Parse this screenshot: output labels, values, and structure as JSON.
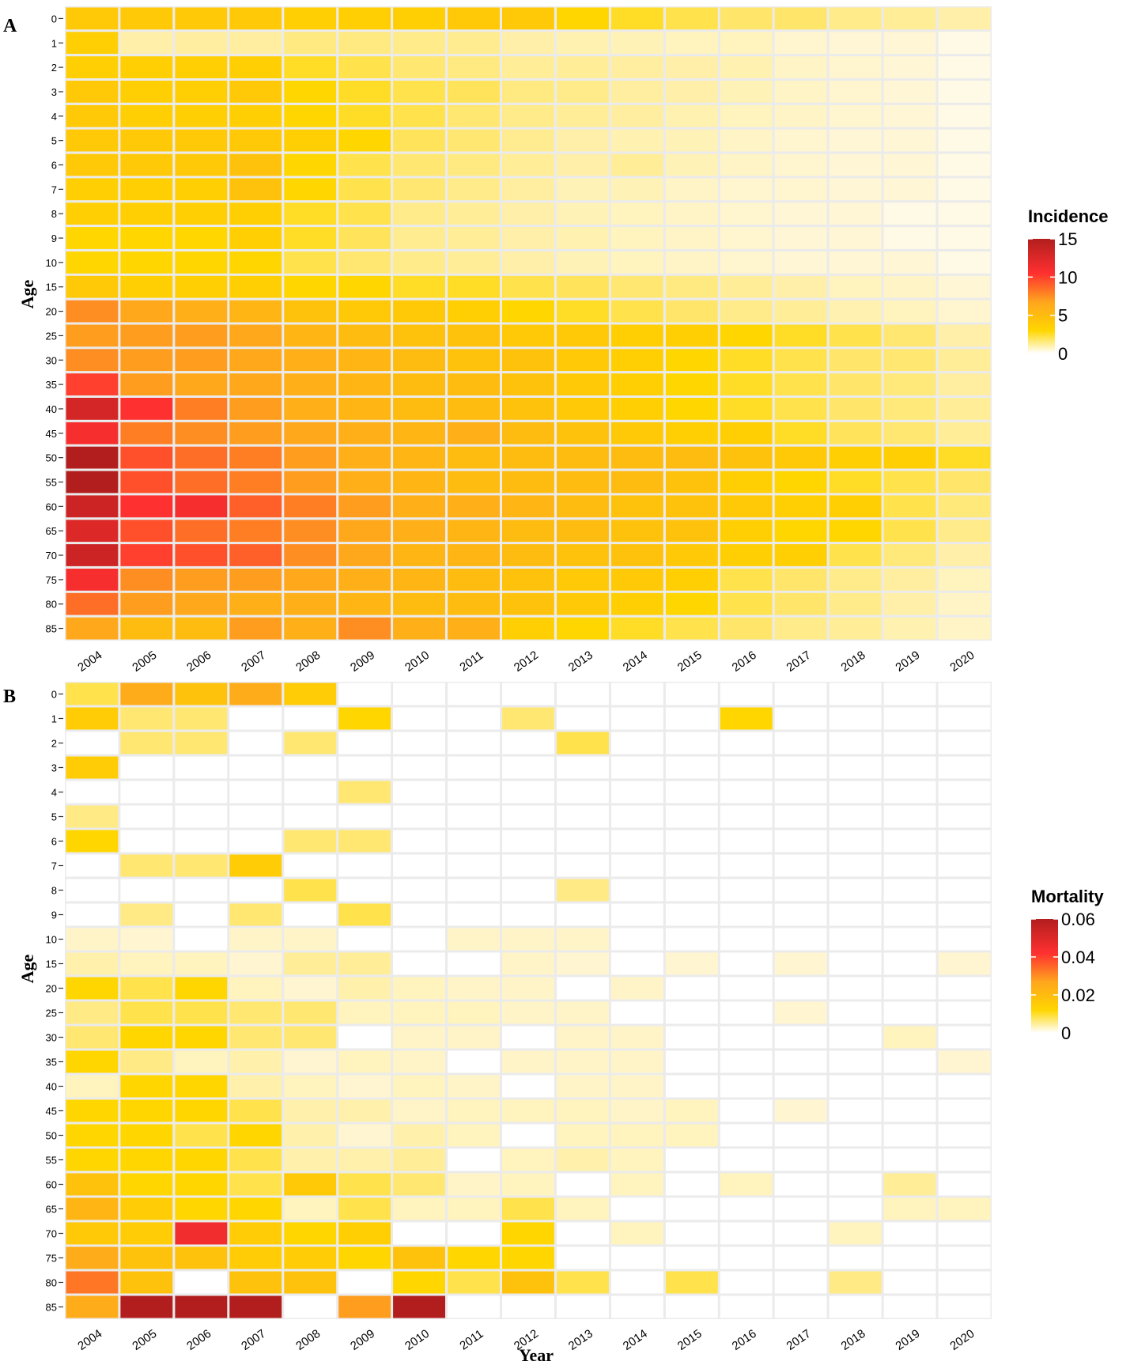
{
  "colors": {
    "scale": [
      "#FFFFFF",
      "#FFF7D9",
      "#FFD600",
      "#FFA51E",
      "#FF3030",
      "#B21E1E"
    ],
    "grid_bg": "#EBEBEB"
  },
  "chart_data": [
    {
      "panel": "A",
      "type": "heatmap",
      "xlabel": "",
      "ylabel": "Age",
      "legend_title": "Incidence",
      "legend_ticks": [
        "15",
        "10",
        "5",
        "0"
      ],
      "legend_range": [
        0,
        15
      ],
      "years": [
        "2004",
        "2005",
        "2006",
        "2007",
        "2008",
        "2009",
        "2010",
        "2011",
        "2012",
        "2013",
        "2014",
        "2015",
        "2016",
        "2017",
        "2018",
        "2019",
        "2020"
      ],
      "ages": [
        "0",
        "1",
        "2",
        "3",
        "4",
        "5",
        "6",
        "7",
        "8",
        "9",
        "10",
        "15",
        "20",
        "25",
        "30",
        "35",
        "40",
        "45",
        "50",
        "55",
        "60",
        "65",
        "70",
        "75",
        "80",
        "85"
      ],
      "values": [
        [
          4.0,
          4.0,
          4.0,
          4.0,
          3.5,
          3.5,
          3.5,
          4.0,
          4.0,
          3.0,
          2.5,
          2.0,
          1.6,
          1.6,
          1.2,
          1.0,
          0.8
        ],
        [
          3.5,
          0.8,
          0.9,
          0.9,
          1.3,
          1.3,
          1.2,
          1.1,
          0.8,
          0.7,
          0.6,
          0.5,
          0.5,
          0.3,
          0.2,
          0.2,
          0.1
        ],
        [
          3.5,
          3.5,
          3.5,
          3.5,
          2.5,
          2.0,
          1.5,
          1.3,
          1.0,
          1.0,
          0.9,
          0.8,
          0.7,
          0.4,
          0.3,
          0.2,
          0.1
        ],
        [
          4.0,
          3.5,
          3.5,
          4.0,
          3.0,
          2.5,
          2.0,
          1.8,
          1.3,
          1.2,
          0.9,
          0.8,
          0.6,
          0.4,
          0.3,
          0.2,
          0.1
        ],
        [
          4.0,
          3.5,
          3.5,
          3.5,
          3.0,
          2.5,
          2.0,
          1.5,
          1.2,
          1.0,
          0.9,
          0.7,
          0.5,
          0.4,
          0.3,
          0.2,
          0.1
        ],
        [
          4.0,
          4.0,
          4.0,
          4.0,
          3.5,
          3.0,
          1.8,
          1.5,
          1.1,
          0.8,
          0.7,
          0.6,
          0.4,
          0.3,
          0.2,
          0.2,
          0.1
        ],
        [
          4.0,
          4.0,
          4.0,
          4.5,
          3.0,
          2.0,
          1.5,
          1.3,
          1.0,
          0.8,
          1.0,
          0.6,
          0.4,
          0.3,
          0.2,
          0.2,
          0.1
        ],
        [
          3.5,
          3.5,
          3.5,
          4.5,
          3.0,
          2.0,
          1.5,
          1.2,
          0.9,
          0.6,
          0.6,
          0.4,
          0.3,
          0.3,
          0.2,
          0.2,
          0.1
        ],
        [
          3.5,
          3.5,
          3.5,
          3.5,
          2.5,
          2.0,
          1.2,
          1.0,
          0.8,
          0.6,
          0.5,
          0.4,
          0.3,
          0.2,
          0.2,
          0.1,
          0.1
        ],
        [
          3.0,
          3.0,
          3.0,
          3.5,
          2.5,
          1.8,
          1.1,
          1.0,
          0.8,
          0.7,
          0.5,
          0.4,
          0.3,
          0.2,
          0.2,
          0.1,
          0.1
        ],
        [
          3.0,
          3.0,
          3.0,
          3.0,
          2.0,
          1.5,
          1.2,
          1.0,
          0.8,
          0.6,
          0.5,
          0.4,
          0.3,
          0.2,
          0.2,
          0.2,
          0.1
        ],
        [
          4.0,
          3.5,
          3.5,
          3.5,
          3.0,
          3.0,
          2.5,
          2.5,
          2.0,
          1.8,
          1.5,
          1.3,
          1.0,
          0.8,
          0.5,
          0.4,
          0.2
        ],
        [
          7.5,
          6.5,
          6.0,
          5.5,
          4.5,
          4.0,
          4.0,
          3.5,
          3.0,
          2.5,
          2.0,
          1.6,
          1.2,
          1.0,
          0.7,
          0.5,
          0.3
        ],
        [
          7.0,
          7.0,
          7.0,
          6.5,
          5.5,
          5.0,
          4.5,
          4.5,
          4.0,
          4.0,
          3.5,
          3.5,
          3.0,
          2.5,
          2.0,
          1.5,
          0.8
        ],
        [
          7.5,
          7.0,
          7.0,
          6.5,
          6.0,
          5.5,
          5.0,
          4.5,
          4.5,
          4.0,
          3.5,
          3.0,
          2.5,
          2.0,
          1.6,
          1.5,
          1.0
        ],
        [
          10.0,
          7.0,
          6.5,
          6.5,
          6.0,
          5.5,
          5.0,
          5.0,
          4.5,
          4.0,
          3.5,
          3.0,
          2.5,
          2.0,
          1.6,
          1.4,
          0.9
        ],
        [
          13.0,
          10.5,
          8.0,
          7.0,
          6.0,
          5.5,
          5.0,
          5.0,
          4.5,
          4.0,
          3.5,
          3.0,
          2.5,
          2.0,
          1.6,
          1.4,
          1.0
        ],
        [
          11.0,
          8.0,
          7.5,
          7.0,
          6.5,
          6.0,
          5.5,
          6.0,
          5.0,
          4.5,
          4.0,
          3.5,
          3.5,
          2.5,
          1.8,
          1.5,
          1.0
        ],
        [
          15.0,
          9.5,
          8.5,
          8.0,
          7.0,
          6.0,
          5.5,
          5.0,
          5.0,
          5.0,
          5.0,
          5.0,
          4.5,
          4.0,
          3.5,
          3.5,
          2.5
        ],
        [
          15.0,
          9.5,
          8.5,
          8.0,
          7.0,
          6.0,
          5.5,
          5.0,
          5.0,
          5.0,
          5.0,
          4.5,
          3.5,
          3.0,
          2.5,
          2.0,
          1.6
        ],
        [
          13.5,
          10.5,
          11.0,
          9.0,
          8.0,
          7.0,
          6.0,
          6.0,
          5.5,
          5.0,
          4.5,
          4.5,
          4.0,
          3.5,
          3.5,
          2.0,
          1.4
        ],
        [
          12.5,
          9.5,
          8.5,
          8.0,
          7.5,
          6.5,
          6.0,
          5.5,
          5.0,
          5.0,
          4.5,
          4.5,
          3.5,
          3.0,
          3.0,
          2.0,
          1.2
        ],
        [
          13.5,
          10.0,
          9.5,
          9.0,
          7.5,
          6.5,
          5.5,
          5.5,
          5.0,
          4.5,
          4.5,
          4.0,
          3.5,
          3.5,
          2.0,
          1.4,
          0.8
        ],
        [
          11.0,
          7.5,
          7.0,
          7.0,
          6.5,
          6.0,
          5.5,
          5.0,
          4.5,
          4.0,
          4.0,
          3.5,
          2.0,
          1.6,
          1.2,
          0.9,
          0.5
        ],
        [
          8.5,
          7.0,
          6.5,
          6.0,
          6.0,
          5.5,
          5.0,
          5.0,
          4.5,
          4.0,
          3.5,
          3.0,
          2.0,
          1.6,
          1.2,
          0.8,
          0.4
        ],
        [
          6.5,
          5.0,
          5.0,
          7.0,
          6.0,
          7.5,
          6.0,
          6.0,
          3.5,
          3.0,
          2.5,
          2.0,
          1.6,
          1.2,
          1.0,
          0.7,
          0.4
        ]
      ]
    },
    {
      "panel": "B",
      "type": "heatmap",
      "xlabel": "Year",
      "ylabel": "Age",
      "legend_title": "Mortality",
      "legend_ticks": [
        "0.06",
        "0.04",
        "0.02",
        "0"
      ],
      "legend_range": [
        0,
        0.06
      ],
      "years": [
        "2004",
        "2005",
        "2006",
        "2007",
        "2008",
        "2009",
        "2010",
        "2011",
        "2012",
        "2013",
        "2014",
        "2015",
        "2016",
        "2017",
        "2018",
        "2019",
        "2020"
      ],
      "ages": [
        "0",
        "1",
        "2",
        "3",
        "4",
        "5",
        "6",
        "7",
        "8",
        "9",
        "10",
        "15",
        "20",
        "25",
        "30",
        "35",
        "40",
        "45",
        "50",
        "55",
        "60",
        "65",
        "70",
        "75",
        "80",
        "85"
      ],
      "values": [
        [
          0.008,
          0.025,
          0.018,
          0.025,
          0.015,
          0,
          0,
          0,
          0,
          0,
          0,
          0,
          0,
          0,
          0,
          0,
          0
        ],
        [
          0.015,
          0.006,
          0.006,
          0,
          0,
          0.012,
          0,
          0,
          0.006,
          0,
          0,
          0,
          0.012,
          0,
          0,
          0,
          0
        ],
        [
          0,
          0.006,
          0.006,
          0,
          0.006,
          0,
          0,
          0,
          0,
          0.008,
          0,
          0,
          0,
          0,
          0,
          0,
          0
        ],
        [
          0.015,
          0,
          0,
          0,
          0,
          0,
          0,
          0,
          0,
          0,
          0,
          0,
          0,
          0,
          0,
          0,
          0
        ],
        [
          0,
          0,
          0,
          0,
          0,
          0.006,
          0,
          0,
          0,
          0,
          0,
          0,
          0,
          0,
          0,
          0,
          0
        ],
        [
          0.005,
          0,
          0,
          0,
          0,
          0,
          0,
          0,
          0,
          0,
          0,
          0,
          0,
          0,
          0,
          0,
          0
        ],
        [
          0.012,
          0,
          0,
          0,
          0.006,
          0.006,
          0,
          0,
          0,
          0,
          0,
          0,
          0,
          0,
          0,
          0,
          0
        ],
        [
          0,
          0.006,
          0.006,
          0.015,
          0,
          0,
          0,
          0,
          0,
          0,
          0,
          0,
          0,
          0,
          0,
          0,
          0
        ],
        [
          0,
          0,
          0,
          0,
          0.008,
          0,
          0,
          0,
          0,
          0.005,
          0,
          0,
          0,
          0,
          0,
          0,
          0
        ],
        [
          0,
          0.005,
          0,
          0.006,
          0,
          0.008,
          0,
          0,
          0,
          0,
          0,
          0,
          0,
          0,
          0,
          0,
          0
        ],
        [
          0.0015,
          0.001,
          0,
          0.0015,
          0.0015,
          0,
          0,
          0.0015,
          0.0015,
          0.0015,
          0,
          0,
          0,
          0,
          0,
          0,
          0
        ],
        [
          0.003,
          0.002,
          0.002,
          0.001,
          0.004,
          0.004,
          0,
          0,
          0.0015,
          0.001,
          0,
          0.001,
          0,
          0.001,
          0,
          0,
          0.001
        ],
        [
          0.012,
          0.008,
          0.012,
          0.002,
          0.001,
          0.003,
          0.002,
          0.0015,
          0.0015,
          0,
          0.0015,
          0,
          0,
          0,
          0,
          0,
          0
        ],
        [
          0.005,
          0.008,
          0.008,
          0.006,
          0.006,
          0.002,
          0.002,
          0.002,
          0.0015,
          0.0015,
          0,
          0,
          0,
          0.001,
          0,
          0,
          0
        ],
        [
          0.006,
          0.012,
          0.012,
          0.006,
          0.006,
          0,
          0.0015,
          0.0015,
          0,
          0.0015,
          0.0015,
          0,
          0,
          0,
          0,
          0.002,
          0
        ],
        [
          0.012,
          0.005,
          0.002,
          0.003,
          0.001,
          0.002,
          0.0015,
          0,
          0.0015,
          0.0015,
          0.0015,
          0,
          0,
          0,
          0,
          0,
          0.001
        ],
        [
          0.002,
          0.012,
          0.012,
          0.003,
          0.002,
          0.001,
          0.002,
          0.0015,
          0,
          0.0015,
          0.0015,
          0,
          0,
          0,
          0,
          0,
          0
        ],
        [
          0.012,
          0.012,
          0.012,
          0.008,
          0.003,
          0.003,
          0.0015,
          0.002,
          0.002,
          0.002,
          0.0015,
          0.002,
          0,
          0.001,
          0,
          0,
          0
        ],
        [
          0.012,
          0.012,
          0.008,
          0.012,
          0.003,
          0.001,
          0.003,
          0.002,
          0,
          0.002,
          0.002,
          0.002,
          0,
          0,
          0,
          0,
          0
        ],
        [
          0.012,
          0.012,
          0.012,
          0.008,
          0.003,
          0.003,
          0.004,
          0,
          0.002,
          0.003,
          0.002,
          0,
          0,
          0,
          0,
          0,
          0
        ],
        [
          0.018,
          0.012,
          0.012,
          0.008,
          0.016,
          0.008,
          0.006,
          0.0015,
          0.002,
          0,
          0.002,
          0,
          0.002,
          0,
          0,
          0.004,
          0
        ],
        [
          0.022,
          0.015,
          0.012,
          0.012,
          0.002,
          0.008,
          0.002,
          0.002,
          0.008,
          0.002,
          0,
          0,
          0,
          0,
          0,
          0.002,
          0.002
        ],
        [
          0.016,
          0.015,
          0.045,
          0.015,
          0.012,
          0.014,
          0,
          0,
          0.012,
          0,
          0.002,
          0,
          0,
          0,
          0.002,
          0,
          0
        ],
        [
          0.025,
          0.018,
          0.018,
          0.015,
          0.015,
          0.012,
          0.018,
          0.012,
          0.012,
          0,
          0,
          0,
          0,
          0,
          0,
          0,
          0
        ],
        [
          0.033,
          0.018,
          0,
          0.018,
          0.018,
          0,
          0.012,
          0.008,
          0.018,
          0.008,
          0,
          0.008,
          0,
          0,
          0.005,
          0,
          0
        ],
        [
          0.025,
          0.06,
          0.06,
          0.06,
          0,
          0.028,
          0.06,
          0,
          0,
          0,
          0,
          0,
          0,
          0,
          0,
          0,
          0
        ]
      ]
    }
  ]
}
